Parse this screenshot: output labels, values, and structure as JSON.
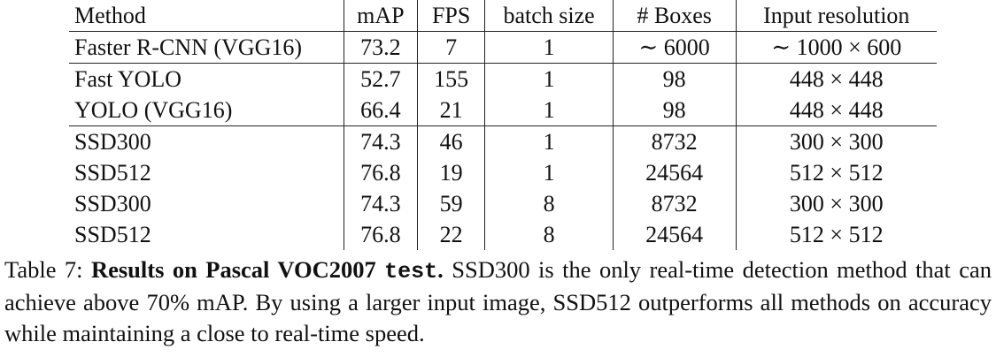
{
  "table": {
    "columns": [
      "Method",
      "mAP",
      "FPS",
      "batch size",
      "# Boxes",
      "Input resolution"
    ],
    "rows": [
      {
        "method": "Faster R-CNN (VGG16)",
        "map": "73.2",
        "fps": "7",
        "batch": "1",
        "boxes": "∼ 6000",
        "res": "∼ 1000 × 600"
      },
      {
        "method": "Fast YOLO",
        "map": "52.7",
        "fps": "155",
        "batch": "1",
        "boxes": "98",
        "res": "448 × 448"
      },
      {
        "method": "YOLO (VGG16)",
        "map": "66.4",
        "fps": "21",
        "batch": "1",
        "boxes": "98",
        "res": "448 × 448"
      },
      {
        "method": "SSD300",
        "map": "74.3",
        "fps": "46",
        "batch": "1",
        "boxes": "8732",
        "res": "300 × 300"
      },
      {
        "method": "SSD512",
        "map": "76.8",
        "fps": "19",
        "batch": "1",
        "boxes": "24564",
        "res": "512 × 512"
      },
      {
        "method": "SSD300",
        "map": "74.3",
        "fps": "59",
        "batch": "8",
        "boxes": "8732",
        "res": "300 × 300"
      },
      {
        "method": "SSD512",
        "map": "76.8",
        "fps": "22",
        "batch": "8",
        "boxes": "24564",
        "res": "512 × 512"
      }
    ]
  },
  "caption": {
    "label": "Table 7: ",
    "title": "Results on Pascal VOC2007 ",
    "code": "test",
    "title_end": ".",
    "text": " SSD300 is the only real-time detection method that can achieve above 70% mAP. By using a larger input image, SSD512 outperforms all methods on accuracy while maintaining a close to real-time speed."
  }
}
